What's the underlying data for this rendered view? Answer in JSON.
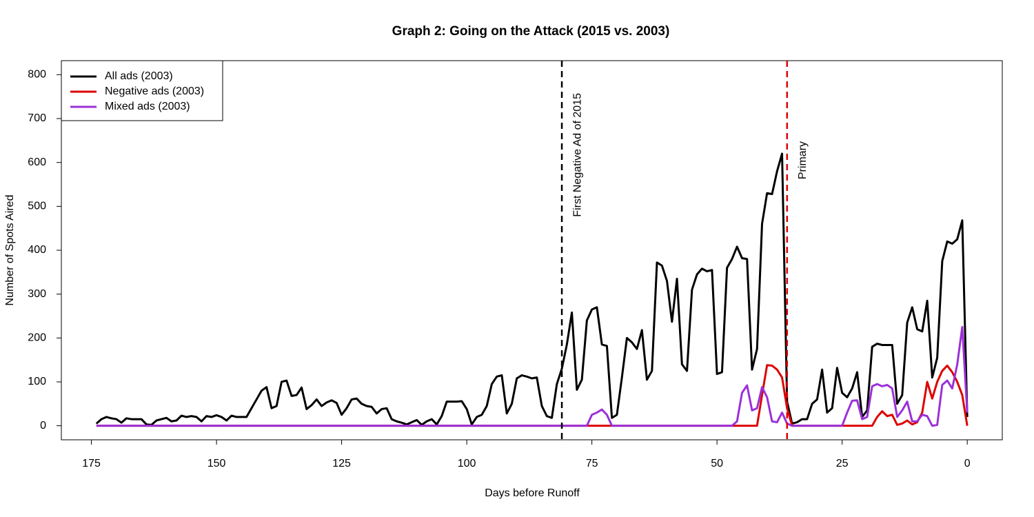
{
  "chart_data": {
    "type": "line",
    "title": "Graph 2: Going on the Attack (2015 vs. 2003)",
    "x_label": "Days before Runoff",
    "y_label": "Number of Spots Aired",
    "x": [
      174,
      173,
      172,
      171,
      170,
      169,
      168,
      167,
      166,
      165,
      164,
      163,
      162,
      161,
      160,
      159,
      158,
      157,
      156,
      155,
      154,
      153,
      152,
      151,
      150,
      149,
      148,
      147,
      146,
      145,
      144,
      143,
      142,
      141,
      140,
      139,
      138,
      137,
      136,
      135,
      134,
      133,
      132,
      131,
      130,
      129,
      128,
      127,
      126,
      125,
      124,
      123,
      122,
      121,
      120,
      119,
      118,
      117,
      116,
      115,
      114,
      113,
      112,
      111,
      110,
      109,
      108,
      107,
      106,
      105,
      104,
      103,
      102,
      101,
      100,
      99,
      98,
      97,
      96,
      95,
      94,
      93,
      92,
      91,
      90,
      89,
      88,
      87,
      86,
      85,
      84,
      83,
      82,
      81,
      80,
      79,
      78,
      77,
      76,
      75,
      74,
      73,
      72,
      71,
      70,
      69,
      68,
      67,
      66,
      65,
      64,
      63,
      62,
      61,
      60,
      59,
      58,
      57,
      56,
      55,
      54,
      53,
      52,
      51,
      50,
      49,
      48,
      47,
      46,
      45,
      44,
      43,
      42,
      41,
      40,
      39,
      38,
      37,
      36,
      35,
      34,
      33,
      32,
      31,
      30,
      29,
      28,
      27,
      26,
      25,
      24,
      23,
      22,
      21,
      20,
      19,
      18,
      17,
      16,
      15,
      14,
      13,
      12,
      11,
      10,
      9,
      8,
      7,
      6,
      5,
      4,
      3,
      2,
      1,
      0
    ],
    "series": [
      {
        "name": "All ads (2003)",
        "color": "#000000",
        "values": [
          5,
          15,
          20,
          17,
          15,
          7,
          17,
          15,
          15,
          15,
          3,
          2,
          12,
          15,
          18,
          10,
          12,
          23,
          20,
          22,
          20,
          10,
          22,
          20,
          24,
          20,
          12,
          23,
          20,
          20,
          20,
          40,
          60,
          80,
          88,
          40,
          45,
          100,
          103,
          68,
          70,
          87,
          38,
          47,
          60,
          45,
          53,
          58,
          52,
          25,
          40,
          60,
          62,
          50,
          45,
          43,
          28,
          38,
          40,
          15,
          10,
          7,
          3,
          8,
          13,
          2,
          10,
          15,
          3,
          22,
          55,
          55,
          55,
          56,
          38,
          3,
          20,
          25,
          45,
          95,
          112,
          115,
          28,
          50,
          108,
          115,
          112,
          108,
          110,
          45,
          22,
          18,
          95,
          130,
          185,
          258,
          82,
          105,
          240,
          265,
          270,
          185,
          182,
          18,
          25,
          110,
          200,
          190,
          175,
          218,
          105,
          125,
          372,
          365,
          330,
          237,
          335,
          140,
          125,
          310,
          345,
          358,
          352,
          355,
          118,
          122,
          360,
          380,
          408,
          382,
          380,
          128,
          175,
          460,
          530,
          528,
          580,
          620,
          55,
          5,
          8,
          15,
          15,
          50,
          60,
          128,
          30,
          40,
          132,
          75,
          65,
          85,
          122,
          20,
          35,
          180,
          187,
          184,
          184,
          184,
          50,
          70,
          235,
          270,
          220,
          215,
          285,
          110,
          155,
          375,
          420,
          415,
          425,
          468,
          20
        ]
      },
      {
        "name": "Negative ads (2003)",
        "color": "#dd0000",
        "values": [
          0,
          0,
          0,
          0,
          0,
          0,
          0,
          0,
          0,
          0,
          0,
          0,
          0,
          0,
          0,
          0,
          0,
          0,
          0,
          0,
          0,
          0,
          0,
          0,
          0,
          0,
          0,
          0,
          0,
          0,
          0,
          0,
          0,
          0,
          0,
          0,
          0,
          0,
          0,
          0,
          0,
          0,
          0,
          0,
          0,
          0,
          0,
          0,
          0,
          0,
          0,
          0,
          0,
          0,
          0,
          0,
          0,
          0,
          0,
          0,
          0,
          0,
          0,
          0,
          0,
          0,
          0,
          0,
          0,
          0,
          0,
          0,
          0,
          0,
          0,
          0,
          0,
          0,
          0,
          0,
          0,
          0,
          0,
          0,
          0,
          0,
          0,
          0,
          0,
          0,
          0,
          0,
          0,
          0,
          0,
          0,
          0,
          0,
          0,
          0,
          0,
          0,
          0,
          0,
          0,
          0,
          0,
          0,
          0,
          0,
          0,
          0,
          0,
          0,
          0,
          0,
          0,
          0,
          0,
          0,
          0,
          0,
          0,
          0,
          0,
          0,
          0,
          0,
          0,
          0,
          0,
          0,
          0,
          70,
          138,
          137,
          128,
          110,
          40,
          0,
          0,
          0,
          0,
          0,
          0,
          0,
          0,
          0,
          0,
          0,
          0,
          0,
          0,
          0,
          0,
          0,
          20,
          33,
          22,
          25,
          2,
          5,
          12,
          3,
          8,
          30,
          100,
          62,
          100,
          125,
          137,
          122,
          100,
          70,
          0
        ]
      },
      {
        "name": "Mixed ads (2003)",
        "color": "#9b30d9",
        "values": [
          0,
          0,
          0,
          0,
          0,
          0,
          0,
          0,
          0,
          0,
          0,
          0,
          0,
          0,
          0,
          0,
          0,
          0,
          0,
          0,
          0,
          0,
          0,
          0,
          0,
          0,
          0,
          0,
          0,
          0,
          0,
          0,
          0,
          0,
          0,
          0,
          0,
          0,
          0,
          0,
          0,
          0,
          0,
          0,
          0,
          0,
          0,
          0,
          0,
          0,
          0,
          0,
          0,
          0,
          0,
          0,
          0,
          0,
          0,
          0,
          0,
          0,
          0,
          0,
          0,
          0,
          0,
          0,
          0,
          0,
          0,
          0,
          0,
          0,
          0,
          0,
          0,
          0,
          0,
          0,
          0,
          0,
          0,
          0,
          0,
          0,
          0,
          0,
          0,
          0,
          0,
          0,
          0,
          0,
          0,
          0,
          0,
          0,
          0,
          25,
          30,
          37,
          25,
          0,
          0,
          0,
          0,
          0,
          0,
          0,
          0,
          0,
          0,
          0,
          0,
          0,
          0,
          0,
          0,
          0,
          0,
          0,
          0,
          0,
          0,
          0,
          0,
          0,
          10,
          75,
          92,
          35,
          40,
          88,
          65,
          10,
          8,
          30,
          5,
          0,
          0,
          0,
          0,
          0,
          0,
          0,
          0,
          0,
          0,
          0,
          30,
          57,
          58,
          15,
          20,
          90,
          95,
          90,
          93,
          85,
          20,
          35,
          55,
          10,
          10,
          25,
          22,
          0,
          2,
          93,
          103,
          85,
          140,
          225,
          30
        ]
      }
    ],
    "vlines": [
      {
        "x": 81,
        "color": "#000000",
        "label": "First Negative Ad of 2015"
      },
      {
        "x": 36,
        "color": "#dd0000",
        "label": "Primary"
      }
    ],
    "xlim": [
      181,
      -7
    ],
    "ylim": [
      -32,
      832
    ],
    "xticks": [
      175,
      150,
      125,
      100,
      75,
      50,
      25,
      0
    ],
    "yticks": [
      0,
      100,
      200,
      300,
      400,
      500,
      600,
      700,
      800
    ],
    "grid": false,
    "legend": "top-left"
  }
}
